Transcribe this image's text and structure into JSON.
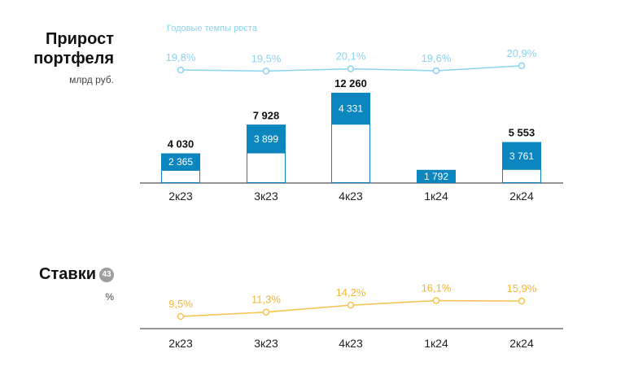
{
  "portfolio": {
    "title_line1": "Прирост",
    "title_line2": "портфеля",
    "unit": "млрд руб.",
    "growth_note": "Годовые темпы роста"
  },
  "rates": {
    "title": "Ставки",
    "ref_badge": "43",
    "unit": "%"
  },
  "colors": {
    "bar_fill": "#0c86bf",
    "bar_outline": "#0c86bf",
    "growth_line": "#8ad4ef",
    "rate_line": "#f7c34a",
    "rate_label": "#f4b63a",
    "axis": "#2a2a2a"
  },
  "chart_data": [
    {
      "type": "bar",
      "categories": [
        "2к23",
        "3к23",
        "4к23",
        "1к24",
        "2к24"
      ],
      "series": [
        {
          "values": [
            4030,
            7928,
            12260,
            1792,
            5553
          ],
          "labels": [
            "4 030",
            "7 928",
            "12 260",
            "",
            "5 553"
          ]
        },
        {
          "values": [
            2365,
            3899,
            4331,
            1792,
            3761
          ],
          "labels": [
            "2 365",
            "3 899",
            "4 331",
            "1 792",
            "3 761"
          ]
        }
      ]
    },
    {
      "type": "line",
      "categories": [
        "2к23",
        "3к23",
        "4к23",
        "1к24",
        "2к24"
      ],
      "title": "Годовые темпы роста",
      "values": [
        19.8,
        19.5,
        20.1,
        19.6,
        20.9
      ],
      "labels": [
        "19,8%",
        "19,5%",
        "20,1%",
        "19,6%",
        "20,9%"
      ]
    },
    {
      "type": "line",
      "categories": [
        "2к23",
        "3к23",
        "4к23",
        "1к24",
        "2к24"
      ],
      "title": "Ставки",
      "values": [
        9.5,
        11.3,
        14.2,
        16.1,
        15.9
      ],
      "labels": [
        "9,5%",
        "11,3%",
        "14,2%",
        "16,1%",
        "15,9%"
      ]
    }
  ]
}
